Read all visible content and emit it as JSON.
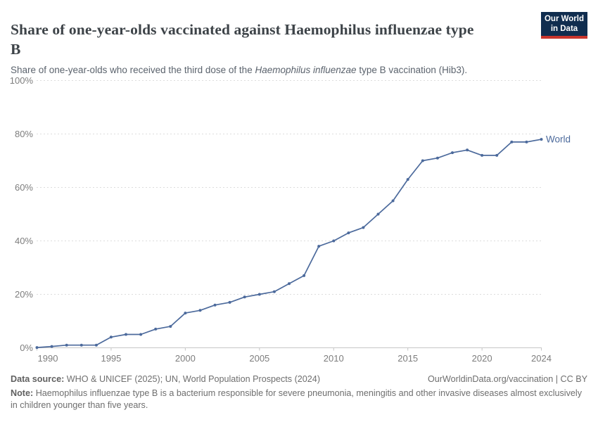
{
  "header": {
    "title_lines": [
      "Share of one-year-olds vaccinated against Haemophilus influenzae type",
      "B"
    ],
    "subtitle": {
      "prefix": "Share of one-year-olds who received the third dose of the ",
      "italic": "Haemophilus influenzae",
      "suffix": " type B vaccination (Hib3)."
    },
    "logo": {
      "line1": "Our World",
      "line2": "in Data"
    }
  },
  "chart_data": {
    "type": "line",
    "title": "Share of one-year-olds vaccinated against Haemophilus influenzae type B",
    "xlabel": "",
    "ylabel": "",
    "x": [
      1990,
      1991,
      1992,
      1993,
      1994,
      1995,
      1996,
      1997,
      1998,
      1999,
      2000,
      2001,
      2002,
      2003,
      2004,
      2005,
      2006,
      2007,
      2008,
      2009,
      2010,
      2011,
      2012,
      2013,
      2014,
      2015,
      2016,
      2017,
      2018,
      2019,
      2020,
      2021,
      2022,
      2023,
      2024
    ],
    "series": [
      {
        "name": "World",
        "color": "#4c6a9c",
        "values": [
          0.1,
          0.5,
          1,
          1,
          1,
          4,
          5,
          5,
          7,
          8,
          13,
          14,
          16,
          17,
          19,
          20,
          21,
          24,
          27,
          38,
          40,
          43,
          45,
          50,
          55,
          63,
          70,
          71,
          73,
          74,
          72,
          72,
          77,
          77,
          78
        ]
      }
    ],
    "ylim": [
      0,
      100
    ],
    "y_ticks": [
      0,
      20,
      40,
      60,
      80,
      100
    ],
    "y_tick_labels": [
      "0%",
      "20%",
      "40%",
      "60%",
      "80%",
      "100%"
    ],
    "x_ticks": [
      1990,
      1995,
      2000,
      2005,
      2010,
      2015,
      2020,
      2024
    ],
    "x_tick_labels": [
      "1990",
      "1995",
      "2000",
      "2005",
      "2010",
      "2015",
      "2020",
      "2024"
    ],
    "grid": true,
    "legend_position": "end-of-line-label"
  },
  "colors": {
    "line": "#4c6a9c",
    "gridline": "#dcdcdc",
    "axis": "#c6c6c6",
    "tick_label": "#7d7d7d",
    "logo_navy": "#102d4f",
    "logo_red": "#c9352d"
  },
  "footer": {
    "source_label": "Data source:",
    "source_text": "WHO & UNICEF (2025); UN, World Population Prospects (2024)",
    "attribution": "OurWorldinData.org/vaccination | CC BY",
    "note_label": "Note:",
    "note_text": "Haemophilus influenzae type B is a bacterium responsible for severe pneumonia, meningitis and other invasive diseases almost exclusively in children younger than five years."
  }
}
